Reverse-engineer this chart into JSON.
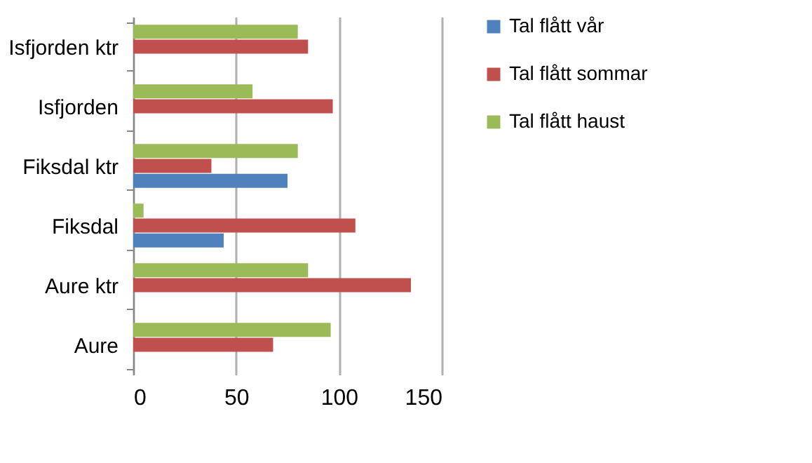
{
  "chart_data": {
    "type": "bar",
    "orientation": "horizontal",
    "categories": [
      "Isfjorden ktr",
      "Isfjorden",
      "Fiksdal ktr",
      "Fiksdal",
      "Aure ktr",
      "Aure"
    ],
    "series": [
      {
        "name": "Tal flått haust",
        "color": "#9bbb59",
        "values": [
          80,
          58,
          80,
          5,
          85,
          96
        ]
      },
      {
        "name": "Tal flått sommar",
        "color": "#c0504d",
        "values": [
          85,
          97,
          38,
          108,
          135,
          68
        ]
      },
      {
        "name": "Tal flått vår",
        "color": "#4f81bd",
        "values": [
          null,
          null,
          75,
          44,
          null,
          null
        ]
      }
    ],
    "xlim": [
      0,
      150
    ],
    "xticks": [
      0,
      50,
      100,
      150
    ],
    "grid": "x",
    "legend": "right"
  }
}
